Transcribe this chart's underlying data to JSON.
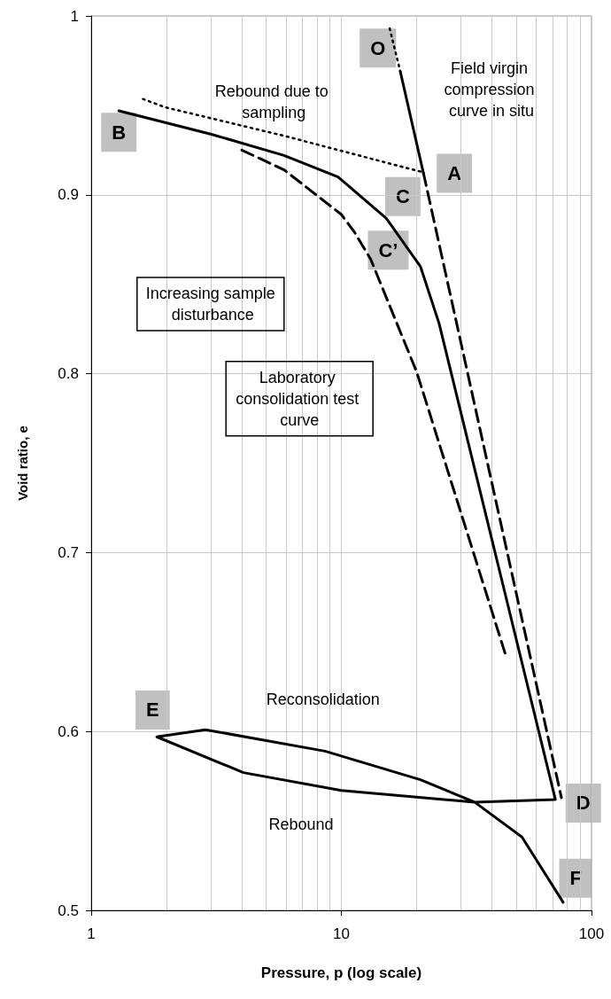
{
  "chart_data": {
    "type": "line",
    "xlabel": "Pressure, p (log scale)",
    "ylabel": "Void ratio, e",
    "log": "x",
    "xlim": [
      1,
      100
    ],
    "xticks": [
      1,
      10,
      100
    ],
    "ylim": [
      0.5,
      1
    ],
    "yticks": [
      0.5,
      0.6,
      0.7,
      0.8,
      0.9,
      1
    ],
    "grid": true,
    "marker": "none",
    "series": [
      {
        "color": "#000000",
        "line_style": "solid",
        "x": [
          1.29,
          3.0,
          5.9,
          9.7,
          15.1,
          20.7,
          24.6,
          71.7,
          34.1,
          10.0,
          4.06,
          1.83,
          2.86,
          8.6,
          20.7,
          34.1,
          52.7,
          77
        ],
        "values": [
          0.947,
          0.934,
          0.922,
          0.91,
          0.887,
          0.86,
          0.828,
          0.562,
          0.5605,
          0.567,
          0.577,
          0.597,
          0.601,
          0.589,
          0.573,
          0.5605,
          0.541,
          0.5045
        ]
      },
      {
        "color": "#000000",
        "line_style": "dashed",
        "x": [
          21.3,
          75.8
        ],
        "values": [
          0.912,
          0.563
        ]
      },
      {
        "color": "#000000",
        "line_style": "dashed",
        "x": [
          4.0,
          5.9,
          10.0,
          11.3,
          13.1,
          20.0,
          45.3
        ],
        "values": [
          0.925,
          0.914,
          0.889,
          0.879,
          0.864,
          0.801,
          0.643
        ]
      },
      {
        "color": "#000000",
        "line_style": "dotted",
        "x": [
          20.7,
          5.9,
          1.97,
          1.58
        ],
        "values": [
          0.913,
          0.933,
          0.949,
          0.954
        ]
      },
      {
        "color": "#000000",
        "line_style": "dotted",
        "x": [
          15.6,
          17.2
        ],
        "values": [
          0.993,
          0.969
        ]
      },
      {
        "color": "#000000",
        "line_style": "solid",
        "x": [
          17.2,
          21.3
        ],
        "values": [
          0.969,
          0.912
        ]
      }
    ],
    "annotations": [
      "O",
      "A",
      "B",
      "C",
      "C’",
      "D",
      "E",
      "F",
      "Rebound due to sampling",
      "Field virgin compression curve in situ",
      "Increasing sample disturbance",
      "Laboratory consolidation test curve",
      "Reconsolidation",
      "Rebound"
    ]
  }
}
